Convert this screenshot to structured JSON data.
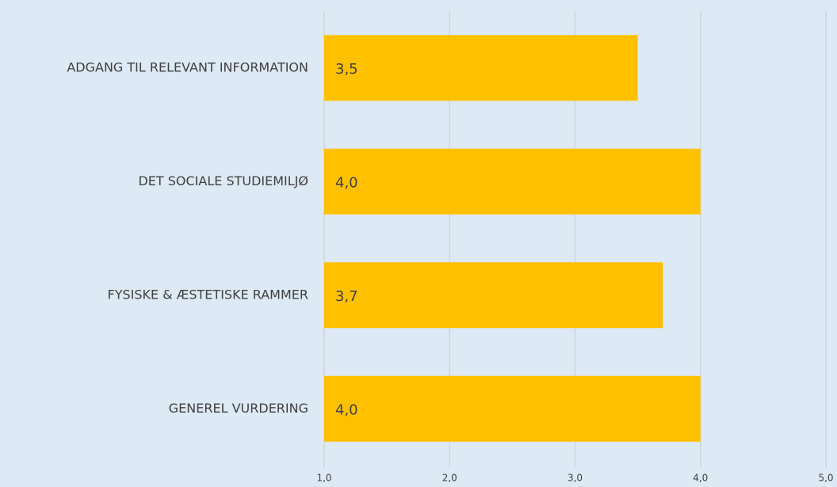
{
  "chart_data": {
    "type": "barh",
    "categories": [
      "ADGANG TIL RELEVANT INFORMATION",
      "DET SOCIALE STUDIEMILJØ",
      "FYSISKE & ÆSTETISKE RAMMER",
      "GENEREL VURDERING"
    ],
    "values": [
      3.5,
      4.0,
      3.7,
      4.0
    ],
    "value_labels": [
      "3,5",
      "4,0",
      "3,7",
      "4,0"
    ],
    "color": "#ffc000",
    "xlim": [
      1,
      5
    ],
    "xticks": [
      {
        "value": 1,
        "label": "1,0"
      },
      {
        "value": 2,
        "label": "2,0"
      },
      {
        "value": 3,
        "label": "3,0"
      },
      {
        "value": 4,
        "label": "4,0"
      },
      {
        "value": 5,
        "label": "5,0"
      }
    ],
    "grid": true
  }
}
